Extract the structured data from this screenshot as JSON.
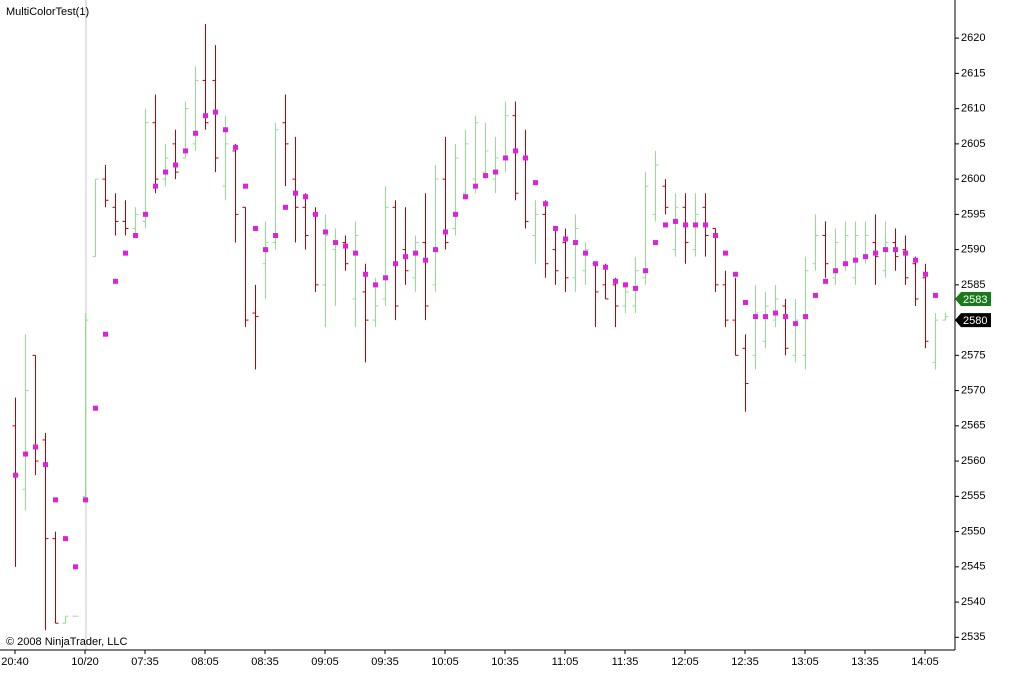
{
  "chart_data": {
    "type": "ohlc",
    "title": "MultiColorTest(1)",
    "copyright": "© 2008 NinjaTrader, LLC",
    "categories": [
      "20:40",
      null,
      null,
      null,
      null,
      null,
      null,
      "10/20",
      null,
      null,
      null,
      null,
      null,
      "07:35",
      null,
      null,
      null,
      null,
      null,
      "08:05",
      null,
      null,
      null,
      null,
      null,
      "08:35",
      null,
      null,
      null,
      null,
      null,
      "09:05",
      null,
      null,
      null,
      null,
      null,
      "09:35",
      null,
      null,
      null,
      null,
      null,
      "10:05",
      null,
      null,
      null,
      null,
      null,
      "10:35",
      null,
      null,
      null,
      null,
      null,
      "11:05",
      null,
      null,
      null,
      null,
      null,
      "11:35",
      null,
      null,
      null,
      null,
      null,
      "12:05",
      null,
      null,
      null,
      null,
      null,
      "12:35",
      null,
      null,
      null,
      null,
      null,
      "13:05",
      null,
      null,
      null,
      null,
      null,
      "13:35",
      null,
      null,
      null,
      null,
      null,
      "14:05",
      null,
      null
    ],
    "open": [
      2565,
      2556,
      2575,
      2563,
      2549,
      2537,
      2538,
      2555,
      2589,
      2600,
      2596,
      2594,
      2593,
      2594,
      2608,
      2600,
      2605,
      2603,
      2605,
      2614,
      2614,
      2599,
      2604,
      2596,
      2581,
      2588,
      2591,
      2608,
      2600,
      2596,
      2595,
      2585,
      2590,
      2591,
      2583,
      2584,
      2580,
      2583,
      2596,
      2590,
      2586,
      2591,
      2585,
      2600,
      2593,
      2598,
      2600,
      2601,
      2600,
      2603,
      2609,
      2603,
      2592,
      2595,
      2590,
      2591,
      2586,
      2587,
      2588,
      2585,
      2585,
      2582,
      2582,
      2586,
      2595,
      2599,
      2590,
      2596,
      2590,
      2596,
      2593,
      2585,
      2580,
      2576,
      2575,
      2577,
      2580,
      2582,
      2575,
      2575,
      2588,
      2592,
      2586,
      2588,
      2586,
      2589,
      2591,
      2587,
      2591,
      2590,
      2588,
      2586,
      2574,
      2580
    ],
    "high": [
      2569,
      2578,
      2575,
      2564,
      2550,
      2538,
      2538,
      2581,
      2600,
      2602,
      2598,
      2597,
      2596,
      2610,
      2612,
      2605,
      2607,
      2611,
      2616,
      2622,
      2619,
      2609,
      2605,
      2596,
      2585,
      2594,
      2608,
      2612,
      2606,
      2598,
      2596,
      2595,
      2593,
      2592,
      2594,
      2588,
      2586,
      2599,
      2597,
      2596,
      2592,
      2598,
      2602,
      2606,
      2605,
      2607,
      2609,
      2608,
      2606,
      2611,
      2611,
      2607,
      2597,
      2597,
      2593,
      2593,
      2595,
      2591,
      2588,
      2588,
      2586,
      2585,
      2589,
      2601,
      2604,
      2600,
      2598,
      2598,
      2598,
      2598,
      2593,
      2587,
      2586,
      2578,
      2585,
      2584,
      2585,
      2583,
      2583,
      2589,
      2595,
      2594,
      2593,
      2594,
      2594,
      2594,
      2595,
      2594,
      2593,
      2592,
      2589,
      2588,
      2581,
      2581
    ],
    "low": [
      2545,
      2553,
      2558,
      2536,
      2537,
      2537,
      2538,
      2554,
      2589,
      2596,
      2592,
      2592,
      2592,
      2593,
      2598,
      2599,
      2600,
      2603,
      2604,
      2607,
      2601,
      2597,
      2591,
      2579,
      2573,
      2583,
      2590,
      2599,
      2591,
      2590,
      2584,
      2579,
      2582,
      2587,
      2579,
      2574,
      2579,
      2582,
      2580,
      2585,
      2584,
      2580,
      2584,
      2590,
      2592,
      2597,
      2598,
      2600,
      2598,
      2601,
      2597,
      2593,
      2588,
      2586,
      2585,
      2584,
      2584,
      2585,
      2579,
      2583,
      2579,
      2581,
      2581,
      2585,
      2594,
      2595,
      2589,
      2588,
      2589,
      2589,
      2584,
      2579,
      2575,
      2567,
      2573,
      2576,
      2579,
      2575,
      2574,
      2573,
      2587,
      2586,
      2585,
      2587,
      2585,
      2588,
      2585,
      2586,
      2587,
      2585,
      2582,
      2576,
      2573,
      2580
    ],
    "close": [
      2558,
      2570,
      2560,
      2549,
      2537,
      2538,
      2538,
      2580,
      2600,
      2597,
      2594,
      2593,
      2595,
      2608,
      2600,
      2603,
      2601,
      2610,
      2614,
      2608,
      2603,
      2605,
      2595,
      2580,
      2580.5,
      2591,
      2607,
      2605,
      2596,
      2592,
      2585,
      2592,
      2591,
      2588,
      2592,
      2580,
      2582,
      2596,
      2582,
      2587,
      2591,
      2582,
      2600,
      2591,
      2603,
      2605,
      2608,
      2604,
      2603,
      2609,
      2598,
      2594,
      2595,
      2588,
      2587,
      2586,
      2593,
      2590,
      2584,
      2583,
      2582,
      2584,
      2587,
      2599,
      2602,
      2596,
      2596,
      2591,
      2595,
      2592,
      2585,
      2580,
      2575,
      2571,
      2581,
      2582,
      2583,
      2576,
      2580,
      2587,
      2592,
      2588,
      2591,
      2592,
      2592,
      2592,
      2589,
      2591,
      2589,
      2586,
      2583,
      2577,
      2580,
      2580.5
    ],
    "indicator": [
      2558,
      2561,
      2562,
      2559.5,
      2554.5,
      2549,
      2545,
      2554.5,
      2567.5,
      2578,
      2585.5,
      2589.5,
      2592,
      2595,
      2599,
      2601,
      2602,
      2604,
      2606.5,
      2609,
      2609.5,
      2607,
      2604.5,
      2599,
      2593,
      2590,
      2592,
      2596,
      2598,
      2597.5,
      2595,
      2592.5,
      2591,
      2590.5,
      2589.5,
      2586.5,
      2585,
      2586,
      2588,
      2589,
      2589.5,
      2588.5,
      2590,
      2592.5,
      2595,
      2597.5,
      2599,
      2600.5,
      2601,
      2603,
      2604,
      2603,
      2599.5,
      2596.5,
      2593,
      2591.5,
      2591,
      2589.5,
      2588,
      2587.5,
      2585.5,
      2585,
      2584.5,
      2587,
      2591,
      2593.5,
      2594,
      2593.5,
      2593.5,
      2593.5,
      2592,
      2589.5,
      2586.5,
      2582.5,
      2580.5,
      2580.5,
      2581,
      2580.5,
      2579.5,
      2580.5,
      2583.5,
      2585.5,
      2587,
      2588,
      2588.5,
      2589,
      2589.5,
      2590,
      2590,
      2589.5,
      2588.5,
      2586.5,
      2583.5,
      null
    ],
    "up_color": "#90e090",
    "down_color": "#c00000",
    "indicator_color": "#e020e0",
    "price_markers": [
      {
        "value": 2583,
        "color": "#1a7a1a"
      },
      {
        "value": 2580,
        "color": "#000000"
      }
    ],
    "ylim": [
      2533.2,
      2624.7
    ],
    "yticks": [
      2535,
      2540,
      2545,
      2550,
      2555,
      2560,
      2565,
      2570,
      2575,
      2580,
      2585,
      2590,
      2595,
      2600,
      2605,
      2610,
      2615,
      2620
    ]
  }
}
